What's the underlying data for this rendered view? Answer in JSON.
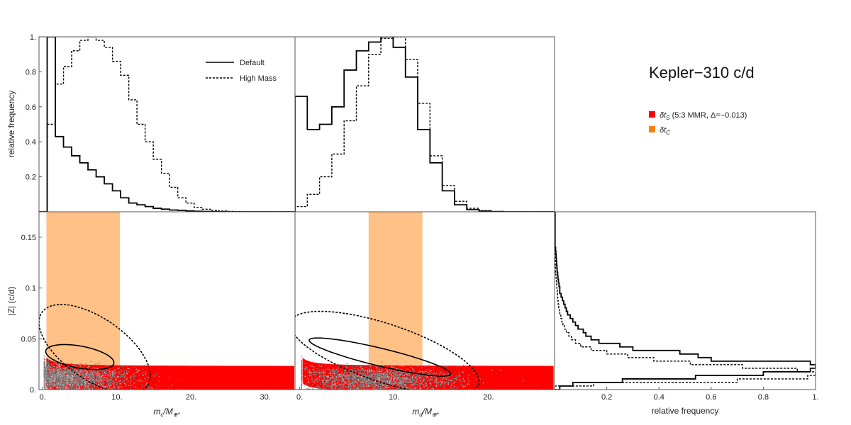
{
  "title": "Kepler−310 c/d",
  "legend_top": [
    {
      "label": "Default",
      "style": "solid"
    },
    {
      "label": "High Mass",
      "style": "dashed"
    }
  ],
  "legend_right": [
    {
      "label": "δt_S (5:3 MMR, Δ=−0.013)",
      "label_main": "δt",
      "label_sub": "S",
      "label_rest": " (5:3 MMR, Δ=−0.013)",
      "color": "#ff0000"
    },
    {
      "label": "δt_C",
      "label_main": "δt",
      "label_sub": "C",
      "label_rest": "",
      "color": "#f5820d"
    }
  ],
  "colors": {
    "frame": "#555555",
    "line": "#000000",
    "red_band": "#ff0000",
    "red_band_edge": "#ff6a1a",
    "orange_band": "#ffc185",
    "scatter_gray": "#7a7a7a",
    "scatter_light": "#b9b9b9"
  },
  "chart_data": [
    {
      "id": "hist-mc",
      "type": "step-histogram",
      "ylabel": "relative frequency",
      "xlim": [
        -0.5,
        34
      ],
      "ylim": [
        0,
        1.0
      ],
      "yticks": [
        0.2,
        0.4,
        0.6,
        0.8,
        1.0
      ],
      "ytick_labels": [
        "0.2",
        "0.4",
        "0.6",
        "0.8",
        "1."
      ],
      "bin_edges": [
        -0.5,
        0.6,
        1.7,
        2.8,
        3.9,
        5.0,
        6.1,
        7.2,
        8.3,
        9.4,
        10.5,
        11.6,
        12.7,
        13.8,
        14.9,
        16.0,
        17.1,
        18.2,
        19.3,
        20.4,
        21.5,
        22.6,
        23.7,
        24.8,
        25.9,
        27.0,
        28.1,
        29.2,
        30.3,
        31.4,
        32.5,
        34
      ],
      "series": [
        {
          "name": "Default",
          "style": "solid",
          "values": [
            0,
            1.0,
            0.43,
            0.37,
            0.32,
            0.28,
            0.24,
            0.2,
            0.16,
            0.12,
            0.08,
            0.05,
            0.04,
            0.03,
            0.02,
            0.015,
            0.01,
            0.008,
            0.005,
            0.003,
            0.002,
            0.001,
            0.001,
            0.0,
            0.0,
            0.0,
            0.0,
            0.0,
            0.0,
            0.0,
            0.0
          ]
        },
        {
          "name": "High Mass",
          "style": "dashed",
          "values": [
            0,
            0.5,
            0.73,
            0.83,
            0.92,
            0.98,
            1.0,
            0.98,
            0.94,
            0.86,
            0.78,
            0.64,
            0.5,
            0.4,
            0.3,
            0.22,
            0.14,
            0.08,
            0.05,
            0.025,
            0.015,
            0.008,
            0.004,
            0.002,
            0.001,
            0.0,
            0.0,
            0.0,
            0.0,
            0.0,
            0.0
          ]
        }
      ]
    },
    {
      "id": "hist-md",
      "type": "step-histogram",
      "xlim": [
        -0.5,
        27
      ],
      "ylim": [
        0,
        1.0
      ],
      "bin_edges": [
        -0.5,
        0.8,
        2.1,
        3.4,
        4.7,
        6.0,
        7.3,
        8.6,
        9.9,
        11.2,
        12.5,
        13.8,
        15.1,
        16.4,
        17.7,
        19.0,
        20.3,
        21.6,
        22.9,
        24.2,
        25.5,
        27
      ],
      "series": [
        {
          "name": "Default",
          "style": "solid",
          "values": [
            0.66,
            0.47,
            0.5,
            0.6,
            0.81,
            0.92,
            0.97,
            1.0,
            0.94,
            0.77,
            0.47,
            0.28,
            0.12,
            0.04,
            0.012,
            0.004,
            0.001,
            0.0,
            0.0,
            0.0,
            0.0
          ]
        },
        {
          "name": "High Mass",
          "style": "dashed",
          "values": [
            0.03,
            0.1,
            0.2,
            0.33,
            0.52,
            0.72,
            0.9,
            0.99,
            1.0,
            0.87,
            0.62,
            0.32,
            0.15,
            0.06,
            0.02,
            0.007,
            0.002,
            0.0,
            0.0,
            0.0,
            0.0
          ]
        }
      ]
    },
    {
      "id": "scatter-mc",
      "type": "scatter",
      "xlabel": "m_c/M_⊕*",
      "xlabel_main": "m",
      "xlabel_sub": "c",
      "xlabel_mid": "/M",
      "xlabel_sub2": "⊕*",
      "ylabel": "|Z| (c/d)",
      "xlim": [
        -0.5,
        34
      ],
      "ylim": [
        0,
        0.175
      ],
      "xticks": [
        0,
        10,
        20,
        30
      ],
      "xtick_labels": [
        "0.",
        "10.",
        "20.",
        "30."
      ],
      "yticks": [
        0,
        0.05,
        0.1,
        0.15
      ],
      "ytick_labels": [
        "0.",
        "0.05",
        "0.1",
        "0.15"
      ],
      "orange_band_x": [
        0.5,
        10.4
      ],
      "red_band": {
        "a": 0.004,
        "b": 0.6,
        "lower_offset": -0.022,
        "upper_offset": 0.004,
        "x_from": 0.5,
        "x_to": 34
      }
    },
    {
      "id": "scatter-md",
      "type": "scatter",
      "xlabel": "m_d/M_⊕*",
      "xlabel_main": "m",
      "xlabel_sub": "d",
      "xlabel_mid": "/M",
      "xlabel_sub2": "⊕*",
      "xlim": [
        -0.5,
        27
      ],
      "ylim": [
        0,
        0.175
      ],
      "xticks": [
        0,
        10,
        20
      ],
      "xtick_labels": [
        "0.",
        "10.",
        "20."
      ],
      "orange_band_x": [
        7.3,
        13.0
      ],
      "red_band": {
        "a": 0.004,
        "b": 0.5,
        "lower_offset": -0.018,
        "upper_offset": 0.004,
        "x_from": 0.3,
        "x_to": 27
      }
    },
    {
      "id": "hist-z",
      "type": "step-histogram-horizontal",
      "xlabel": "relative frequency",
      "xlim": [
        0,
        1.0
      ],
      "xticks": [
        0.2,
        0.4,
        0.6,
        0.8,
        1.0
      ],
      "xtick_labels": [
        "0.2",
        "0.4",
        "0.6",
        "0.8",
        "1."
      ],
      "ylim": [
        0,
        0.175
      ],
      "bin_edges": [
        0,
        0.0035,
        0.007,
        0.0105,
        0.014,
        0.0175,
        0.021,
        0.0245,
        0.028,
        0.0315,
        0.035,
        0.0385,
        0.042,
        0.0455,
        0.049,
        0.0525,
        0.056,
        0.0595,
        0.063,
        0.0665,
        0.07,
        0.0735,
        0.077,
        0.0805,
        0.084,
        0.0875,
        0.091,
        0.0945,
        0.098,
        0.1015,
        0.105,
        0.1085,
        0.112,
        0.1155,
        0.119,
        0.1225,
        0.126,
        0.1295,
        0.133,
        0.1365,
        0.14,
        0.175
      ],
      "series": [
        {
          "name": "Default",
          "style": "solid",
          "values": [
            0.02,
            0.07,
            0.26,
            0.54,
            0.8,
            0.98,
            1.0,
            0.98,
            0.6,
            0.55,
            0.48,
            0.3,
            0.25,
            0.17,
            0.14,
            0.12,
            0.11,
            0.09,
            0.08,
            0.07,
            0.06,
            0.05,
            0.045,
            0.04,
            0.035,
            0.03,
            0.025,
            0.02,
            0.02,
            0.017,
            0.015,
            0.013,
            0.012,
            0.01,
            0.009,
            0.008,
            0.007,
            0.006,
            0.005,
            0.004,
            0.002
          ]
        },
        {
          "name": "High Mass",
          "style": "dashed",
          "values": [
            0.0,
            0.15,
            0.7,
            0.97,
            1.0,
            0.93,
            0.72,
            0.52,
            0.38,
            0.28,
            0.2,
            0.14,
            0.1,
            0.08,
            0.065,
            0.055,
            0.045,
            0.038,
            0.032,
            0.028,
            0.024,
            0.02,
            0.018,
            0.016,
            0.014,
            0.012,
            0.011,
            0.01,
            0.009,
            0.008,
            0.007,
            0.006,
            0.005,
            0.004,
            0.004,
            0.003,
            0.003,
            0.002,
            0.002,
            0.001,
            0.0
          ]
        }
      ]
    }
  ]
}
